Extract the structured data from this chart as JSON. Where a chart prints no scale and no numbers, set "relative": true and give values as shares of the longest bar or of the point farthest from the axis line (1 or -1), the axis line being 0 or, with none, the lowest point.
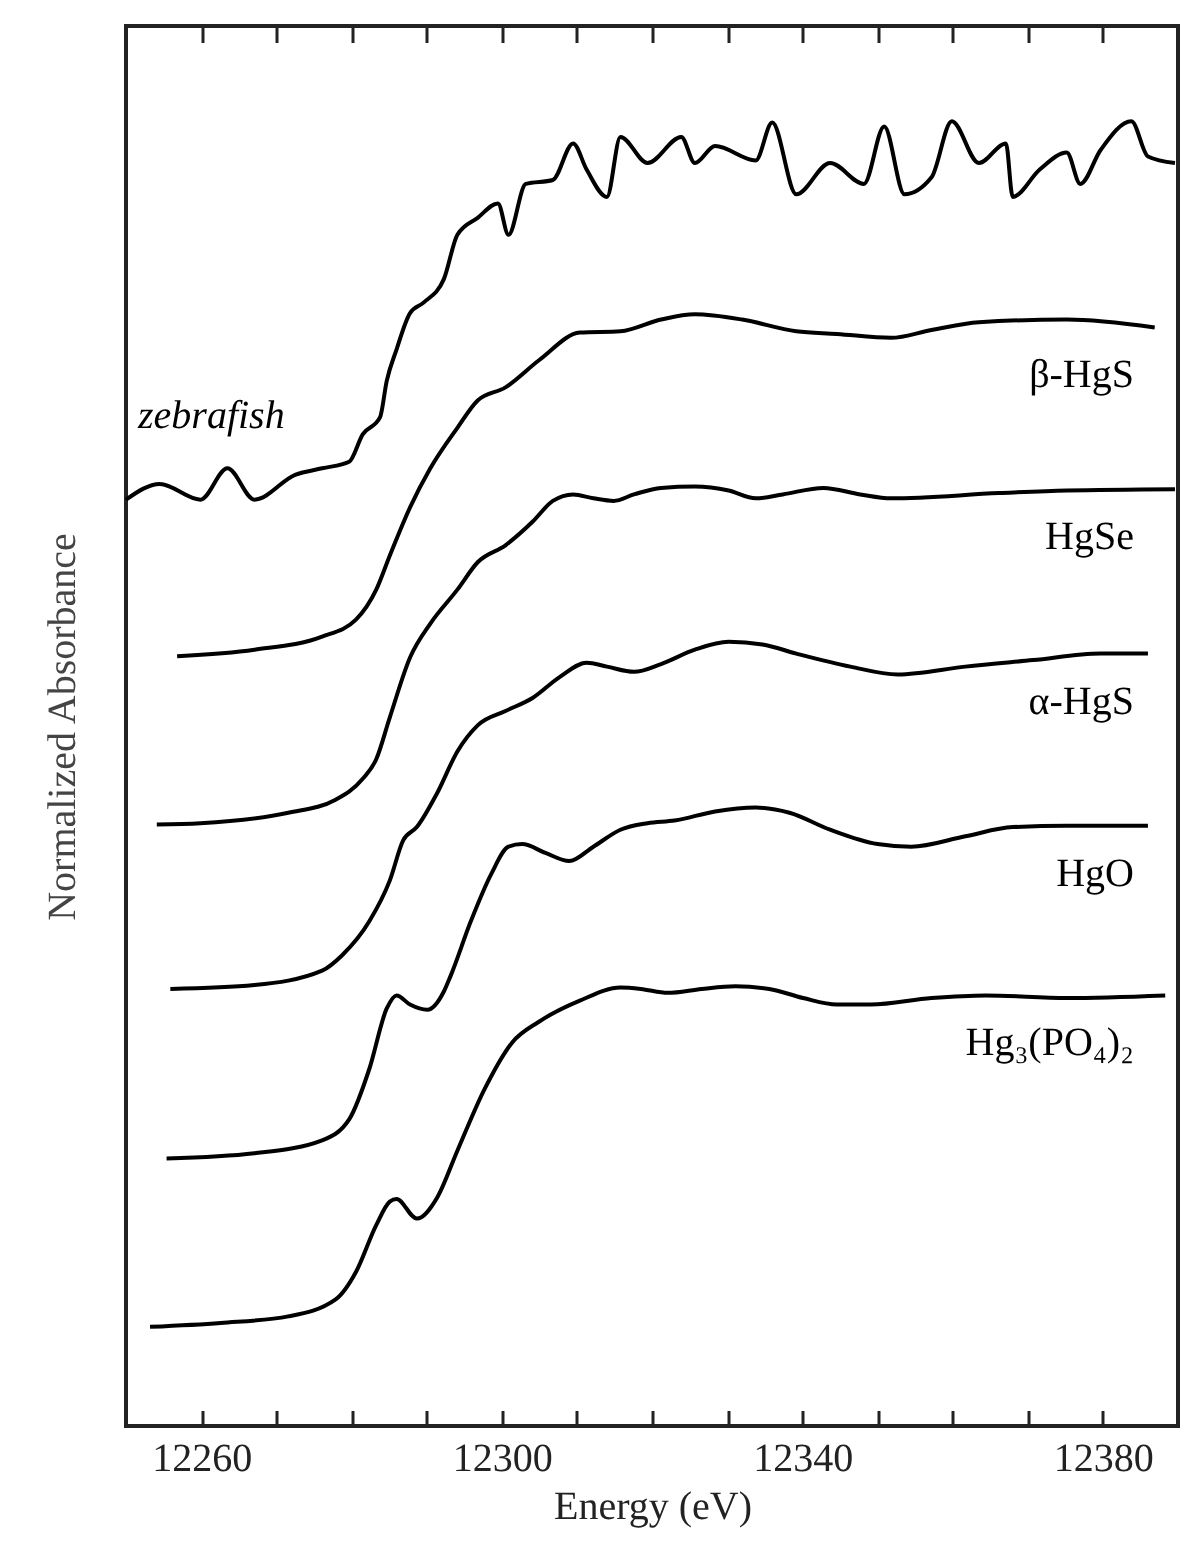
{
  "chart_data": {
    "type": "line",
    "relative": true,
    "xlabel": "Energy (eV)",
    "ylabel": "Normalized Absorbance",
    "xlim": [
      12250,
      12390
    ],
    "xticks": [
      12260,
      {
        "value": 12270,
        "label": null
      },
      {
        "value": 12280,
        "label": null
      },
      {
        "value": 12290,
        "label": null
      },
      12300,
      {
        "value": 12310,
        "label": null
      },
      {
        "value": 12320,
        "label": null
      },
      {
        "value": 12330,
        "label": null
      },
      12340,
      {
        "value": 12350,
        "label": null
      },
      {
        "value": 12360,
        "label": null
      },
      {
        "value": 12370,
        "label": null
      },
      12380
    ],
    "grid": false,
    "marker": "none",
    "line_style": "solid",
    "series": [
      {
        "name": "zebrafish",
        "color": "#000000",
        "x": [
          12250.0,
          12254.5,
          12259.9,
          12263.5,
          12267.1,
          12272.5,
          12276.1,
          12279.7,
          12281.5,
          12283.8,
          12284.7,
          12286.0,
          12287.8,
          12289.6,
          12292.3,
          12294.1,
          12296.8,
          12299.5,
          12300.9,
          12303.2,
          12306.8,
          12309.5,
          12311.3,
          12314.0,
          12315.8,
          12319.4,
          12323.9,
          12325.7,
          12328.4,
          12333.8,
          12336.0,
          12339.2,
          12343.7,
          12348.2,
          12350.9,
          12353.6,
          12357.2,
          12359.9,
          12363.5,
          12367.1,
          12368.0,
          12371.6,
          12375.2,
          12377.0,
          12379.7,
          12383.8,
          12386.0,
          12389.6
        ],
        "values": [
          0.71,
          0.722,
          0.71,
          0.734,
          0.71,
          0.729,
          0.734,
          0.739,
          0.76,
          0.773,
          0.801,
          0.825,
          0.853,
          0.861,
          0.879,
          0.913,
          0.926,
          0.937,
          0.913,
          0.952,
          0.955,
          0.983,
          0.963,
          0.942,
          0.988,
          0.968,
          0.988,
          0.968,
          0.981,
          0.97,
          0.999,
          0.944,
          0.968,
          0.952,
          0.996,
          0.944,
          0.957,
          1.0,
          0.968,
          0.983,
          0.942,
          0.963,
          0.976,
          0.952,
          0.978,
          1.0,
          0.973,
          0.968
        ]
      },
      {
        "name": "β-HgS",
        "color": "#000000",
        "x": [
          12256.8,
          12267.1,
          12276.1,
          12280.6,
          12283.3,
          12285.1,
          12287.8,
          12290.5,
          12294.1,
          12296.8,
          12300.5,
          12305.0,
          12310.4,
          12315.8,
          12321.2,
          12325.7,
          12332.0,
          12339.2,
          12344.6,
          12351.8,
          12357.2,
          12363.5,
          12375.2,
          12386.9
        ],
        "values": [
          0.59,
          0.595,
          0.605,
          0.618,
          0.641,
          0.667,
          0.704,
          0.734,
          0.765,
          0.786,
          0.796,
          0.817,
          0.838,
          0.839,
          0.848,
          0.852,
          0.848,
          0.839,
          0.837,
          0.834,
          0.84,
          0.846,
          0.848,
          0.842
        ]
      },
      {
        "name": "HgSe",
        "color": "#000000",
        "x": [
          12254.1,
          12259.9,
          12271.6,
          12277.9,
          12281.5,
          12283.3,
          12285.1,
          12287.8,
          12290.5,
          12294.1,
          12296.8,
          12300.5,
          12304.1,
          12306.8,
          12309.5,
          12312.2,
          12314.9,
          12317.6,
          12321.2,
          12325.7,
          12330.2,
          12333.8,
          12337.4,
          12342.8,
          12347.7,
          12351.8,
          12366.2,
          12375.2,
          12389.6
        ],
        "values": [
          0.461,
          0.462,
          0.47,
          0.48,
          0.496,
          0.511,
          0.543,
          0.589,
          0.615,
          0.641,
          0.662,
          0.675,
          0.693,
          0.709,
          0.714,
          0.711,
          0.709,
          0.714,
          0.719,
          0.72,
          0.717,
          0.711,
          0.714,
          0.719,
          0.714,
          0.711,
          0.715,
          0.717,
          0.718
        ]
      },
      {
        "name": "α-HgS",
        "color": "#000000",
        "x": [
          12255.9,
          12267.1,
          12276.1,
          12278.8,
          12282.4,
          12285.1,
          12286.9,
          12288.7,
          12291.4,
          12294.1,
          12296.8,
          12300.5,
          12304.1,
          12307.7,
          12311.3,
          12314.0,
          12317.6,
          12321.2,
          12325.7,
          12330.2,
          12334.7,
          12339.2,
          12346.4,
          12352.7,
          12361.7,
          12370.7,
          12379.7,
          12386.0
        ],
        "values": [
          0.335,
          0.338,
          0.349,
          0.361,
          0.387,
          0.418,
          0.449,
          0.459,
          0.485,
          0.517,
          0.537,
          0.548,
          0.558,
          0.574,
          0.585,
          0.582,
          0.578,
          0.584,
          0.595,
          0.601,
          0.599,
          0.592,
          0.582,
          0.576,
          0.582,
          0.587,
          0.592,
          0.592
        ]
      },
      {
        "name": "HgO",
        "color": "#000000",
        "x": [
          12255.4,
          12267.1,
          12276.1,
          12279.7,
          12282.4,
          12284.7,
          12286.0,
          12287.8,
          12290.1,
          12292.3,
          12293.2,
          12295.9,
          12298.6,
          12300.9,
          12302.7,
          12305.9,
          12309.0,
          12312.2,
          12315.8,
          12319.4,
          12323.0,
          12328.4,
          12333.8,
          12338.3,
          12343.7,
          12350.0,
          12354.5,
          12361.7,
          12368.0,
          12375.2,
          12386.0
        ],
        "values": [
          0.205,
          0.209,
          0.219,
          0.235,
          0.274,
          0.32,
          0.33,
          0.323,
          0.319,
          0.333,
          0.345,
          0.387,
          0.423,
          0.444,
          0.446,
          0.439,
          0.433,
          0.444,
          0.457,
          0.462,
          0.464,
          0.471,
          0.474,
          0.47,
          0.457,
          0.446,
          0.444,
          0.452,
          0.459,
          0.46,
          0.46
        ]
      },
      {
        "name": "Hg₃(PO₄)₂",
        "color": "#000000",
        "x": [
          12253.2,
          12262.6,
          12271.6,
          12277.9,
          12280.6,
          12283.3,
          12285.1,
          12286.0,
          12288.7,
          12291.4,
          12294.1,
          12297.7,
          12301.4,
          12305.0,
          12310.4,
          12315.8,
          12318.5,
          12322.1,
          12326.6,
          12331.1,
          12335.6,
          12340.1,
          12344.6,
          12349.1,
          12357.2,
          12364.4,
          12375.2,
          12388.3
        ],
        "values": [
          0.076,
          0.079,
          0.084,
          0.097,
          0.118,
          0.154,
          0.172,
          0.174,
          0.159,
          0.175,
          0.211,
          0.258,
          0.294,
          0.31,
          0.326,
          0.336,
          0.335,
          0.332,
          0.335,
          0.337,
          0.335,
          0.328,
          0.323,
          0.323,
          0.328,
          0.33,
          0.328,
          0.33
        ]
      }
    ]
  }
}
